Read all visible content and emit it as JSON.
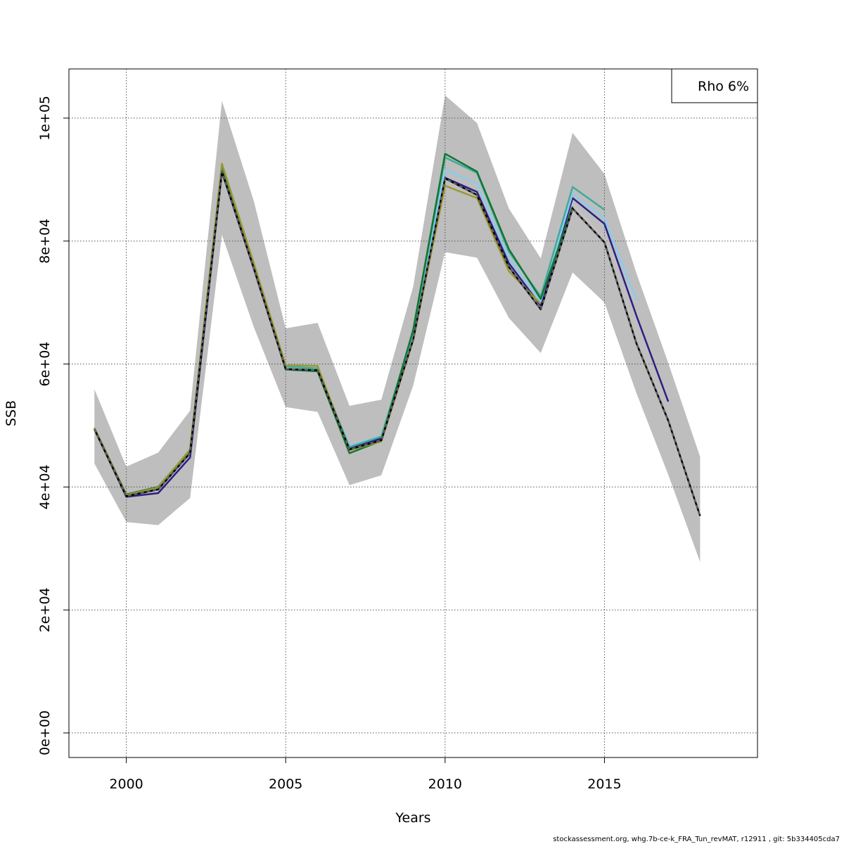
{
  "footer_text": "stockassessment.org, whg.7b-ce-k_FRA_Tun_revMAT, r12911 , git: 5b334405cda7",
  "chart_data": {
    "type": "line",
    "xlabel": "Years",
    "ylabel": "SSB",
    "xlim": [
      1998.2,
      2019.8
    ],
    "ylim": [
      -4000,
      108000
    ],
    "x_ticks": [
      2000,
      2005,
      2010,
      2015
    ],
    "x_tick_labels": [
      "2000",
      "2005",
      "2010",
      "2015"
    ],
    "y_ticks": [
      0,
      20000,
      40000,
      60000,
      80000,
      100000
    ],
    "y_tick_labels": [
      "0e+00",
      "2e+04",
      "4e+04",
      "6e+04",
      "8e+04",
      "1e+05"
    ],
    "grid": true,
    "legend": {
      "position": "top-right",
      "text": "Rho 6%"
    },
    "band": {
      "color": "#bebebe",
      "x": [
        1999,
        2000,
        2001,
        2002,
        2003,
        2004,
        2005,
        2006,
        2007,
        2008,
        2009,
        2010,
        2011,
        2012,
        2013,
        2014,
        2015,
        2016,
        2017,
        2018
      ],
      "lower": [
        43800,
        34300,
        33800,
        38200,
        81000,
        66000,
        53000,
        52200,
        40300,
        41900,
        56500,
        78200,
        77300,
        67500,
        61800,
        74900,
        70000,
        55300,
        42000,
        27800
      ],
      "upper": [
        55900,
        43300,
        45600,
        52400,
        102800,
        86500,
        65800,
        66700,
        53200,
        54200,
        72600,
        103700,
        99200,
        85300,
        77200,
        97600,
        90900,
        74800,
        60200,
        44900
      ]
    },
    "series": [
      {
        "color": "#c3c3c3",
        "dashed": false,
        "x": [
          1999,
          2000,
          2001,
          2002,
          2003,
          2004,
          2005,
          2006,
          2007,
          2008,
          2009,
          2010,
          2011,
          2012,
          2013,
          2014,
          2015,
          2016
        ],
        "y": [
          49400,
          38500,
          39600,
          45600,
          91300,
          75700,
          59300,
          59000,
          46200,
          48000,
          64300,
          90200,
          87600,
          76000,
          69000,
          86000,
          80300,
          69900
        ]
      },
      {
        "color": "#2b1f86",
        "dashed": false,
        "x": [
          1999,
          2000,
          2001,
          2002,
          2003,
          2004,
          2005,
          2006,
          2007,
          2008,
          2009,
          2010,
          2011,
          2012,
          2013,
          2014,
          2015,
          2016,
          2017
        ],
        "y": [
          49400,
          38400,
          39000,
          44800,
          91200,
          75500,
          59200,
          59100,
          46400,
          47900,
          64700,
          90300,
          88000,
          76400,
          69500,
          87000,
          82800,
          67900,
          53900
        ]
      },
      {
        "color": "#88ccee",
        "dashed": false,
        "x": [
          1999,
          2000,
          2001,
          2002,
          2003,
          2004,
          2005,
          2006,
          2007,
          2008,
          2009,
          2010,
          2011,
          2012,
          2013,
          2014,
          2015,
          2016
        ],
        "y": [
          49500,
          38600,
          39700,
          45700,
          91700,
          75800,
          59400,
          59200,
          46700,
          48300,
          65000,
          91600,
          89400,
          77200,
          70200,
          87700,
          83700,
          70300
        ]
      },
      {
        "color": "#44aa99",
        "dashed": false,
        "x": [
          1999,
          2000,
          2001,
          2002,
          2003,
          2004,
          2005,
          2006,
          2007,
          2008,
          2009,
          2010,
          2011,
          2012,
          2013,
          2014,
          2015
        ],
        "y": [
          49500,
          38700,
          39900,
          45900,
          92000,
          76000,
          59600,
          59300,
          46500,
          48200,
          65300,
          93600,
          91100,
          78300,
          71000,
          88800,
          85100
        ]
      },
      {
        "color": "#117733",
        "dashed": false,
        "x": [
          1999,
          2000,
          2001,
          2002,
          2003,
          2004,
          2005,
          2006,
          2007,
          2008,
          2009,
          2010,
          2011,
          2012,
          2013,
          2014
        ],
        "y": [
          49600,
          38800,
          40000,
          46000,
          92400,
          76200,
          59100,
          58800,
          45500,
          47500,
          65600,
          94200,
          91300,
          78700,
          70600,
          85600
        ]
      },
      {
        "color": "#999933",
        "dashed": false,
        "x": [
          1999,
          2000,
          2001,
          2002,
          2003,
          2004,
          2005,
          2006,
          2007,
          2008,
          2009,
          2010,
          2011,
          2012,
          2013
        ],
        "y": [
          49600,
          38700,
          39900,
          46100,
          92600,
          76400,
          59800,
          59700,
          46000,
          47400,
          63900,
          89000,
          87000,
          75100,
          69800
        ]
      },
      {
        "color": "#000000",
        "dashed": false,
        "x": [
          1999,
          2000,
          2001,
          2002,
          2003,
          2004,
          2005,
          2006,
          2007,
          2008,
          2009,
          2010,
          2011,
          2012,
          2013,
          2014,
          2015,
          2016,
          2017,
          2018
        ],
        "y": [
          49400,
          38500,
          39600,
          45500,
          91300,
          75600,
          59200,
          59000,
          46100,
          47600,
          64000,
          90200,
          87500,
          75800,
          68900,
          85300,
          79800,
          63400,
          50800,
          35300
        ]
      },
      {
        "color": "#000000",
        "dashed": true,
        "x": [
          1999,
          2000,
          2001,
          2002,
          2003,
          2004,
          2005,
          2006,
          2007,
          2008,
          2009,
          2010,
          2011,
          2012,
          2013,
          2014,
          2015,
          2016,
          2017,
          2018
        ],
        "y": [
          49400,
          38500,
          39600,
          45500,
          91300,
          75600,
          59200,
          59000,
          46100,
          47600,
          64000,
          90200,
          87500,
          75800,
          68900,
          85300,
          79800,
          63400,
          50800,
          35300
        ]
      }
    ]
  }
}
